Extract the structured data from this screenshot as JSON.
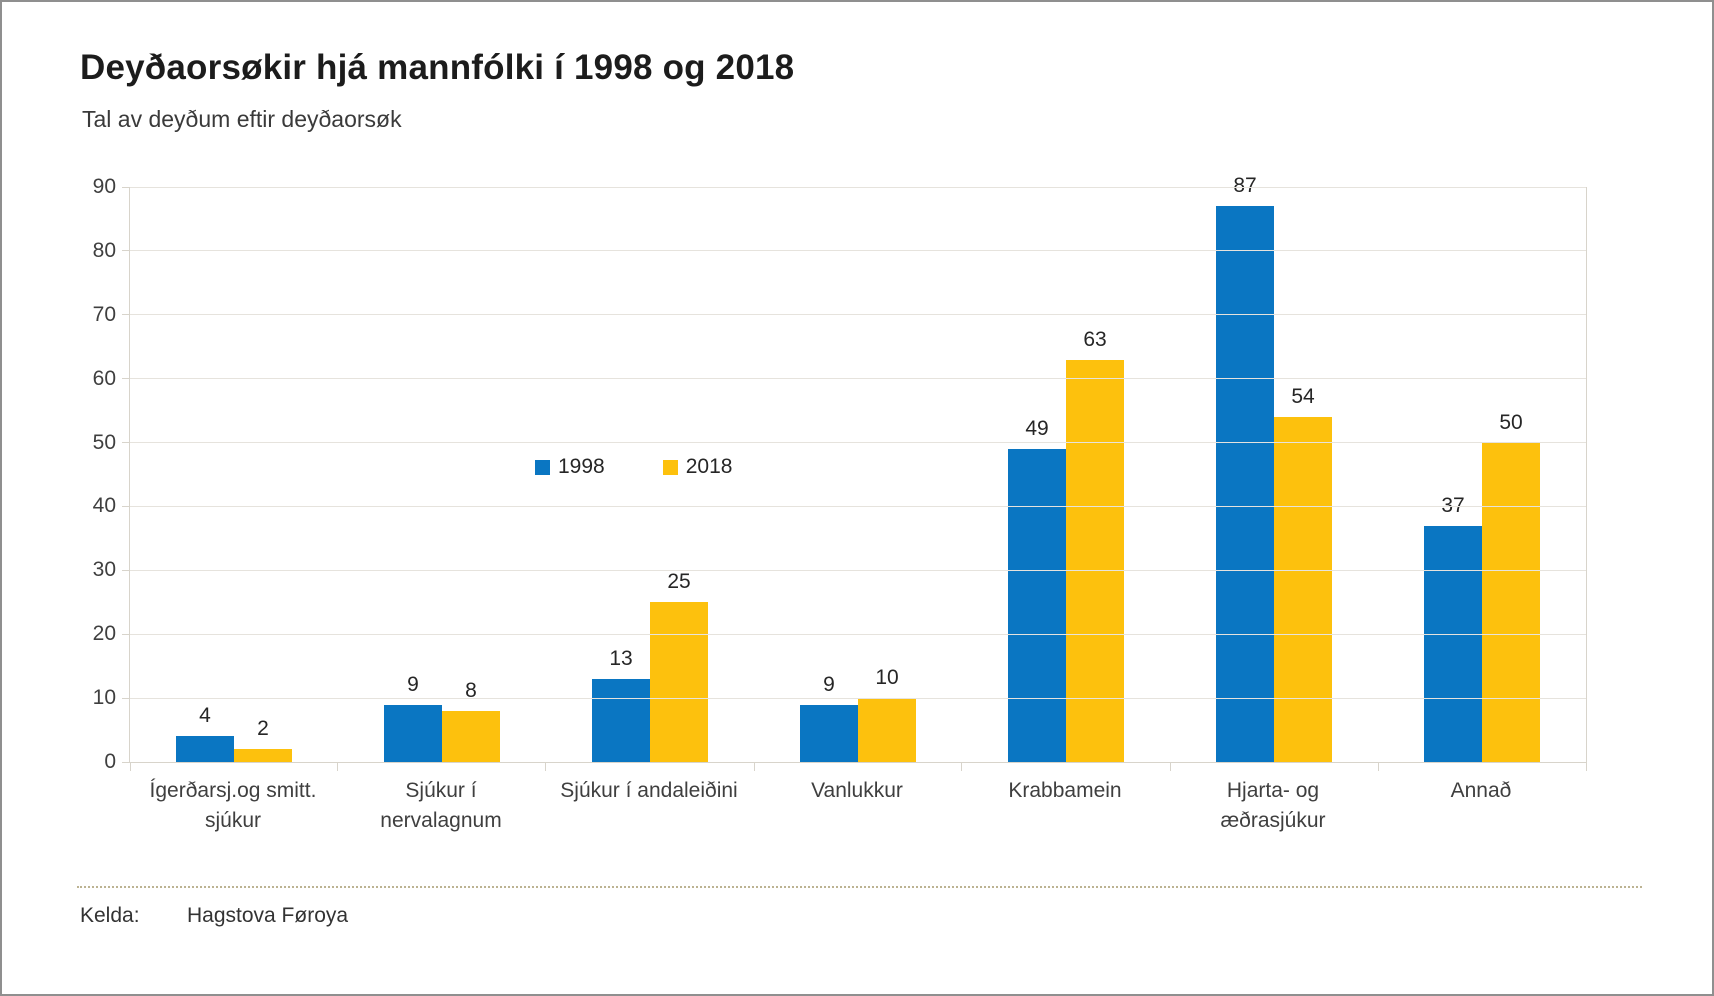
{
  "title": "Deyðaorsøkir hjá mannfólki í 1998 og 2018",
  "subtitle": "Tal av deyðum eftir deyðaorsøk",
  "footer": {
    "source_label": "Kelda:",
    "source_value": "Hagstova Føroya"
  },
  "colors": {
    "series_1998": "#0a76c2",
    "series_2018": "#fdc10d",
    "gridline": "#e6e3dd",
    "axis_line": "#d8d4cb",
    "text": "#3f3f3f",
    "frame_border": "#8f8f8f"
  },
  "chart_data": {
    "type": "bar",
    "title": "Deyðaorsøkir hjá mannfólki í 1998 og 2018",
    "subtitle": "Tal av deyðum eftir deyðaorsøk",
    "categories": [
      "Ígerðarsj.og smitt.\nsjúkur",
      "Sjúkur í\nnervalagnum",
      "Sjúkur í andaleiðini",
      "Vanlukkur",
      "Krabbamein",
      "Hjarta- og\næðrasjúkur",
      "Annað"
    ],
    "series": [
      {
        "name": "1998",
        "color": "#0a76c2",
        "values": [
          4,
          9,
          13,
          9,
          49,
          87,
          37
        ]
      },
      {
        "name": "2018",
        "color": "#fdc10d",
        "values": [
          2,
          8,
          25,
          10,
          63,
          54,
          50
        ]
      }
    ],
    "xlabel": "",
    "ylabel": "",
    "ylim": [
      0,
      90
    ],
    "ytick_interval": 10,
    "grid": true,
    "legend_position": "inside-top-left",
    "value_labels": true
  }
}
